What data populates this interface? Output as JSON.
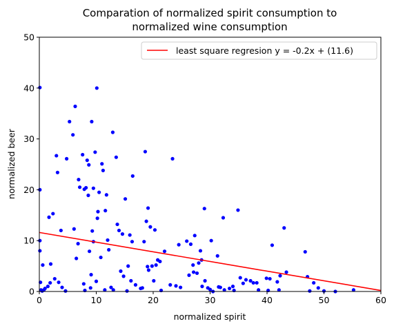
{
  "chart_data": {
    "type": "scatter",
    "title_lines": [
      "Comparation of normalized spirit consumption to",
      "normalized wine consumption"
    ],
    "xlabel": "normalized spirit",
    "ylabel": "normalized beer",
    "xlim": [
      0,
      60
    ],
    "ylim": [
      0,
      50
    ],
    "xticks": [
      0,
      10,
      20,
      30,
      40,
      50,
      60
    ],
    "yticks": [
      0,
      10,
      20,
      30,
      40,
      50
    ],
    "grid": false,
    "legend_position": "top-right",
    "colors": {
      "points": "#0000ff",
      "line": "#ff0000"
    },
    "regression": {
      "label": "least square regresion y = -0.2x + (11.6)",
      "slope": -0.19,
      "intercept": 11.6,
      "x_range": [
        0,
        60
      ]
    },
    "points": [
      [
        0.1,
        40.1
      ],
      [
        0.1,
        20.0
      ],
      [
        0.1,
        10.0
      ],
      [
        0.1,
        8.0
      ],
      [
        0.2,
        1.8
      ],
      [
        0.3,
        0.3
      ],
      [
        0.5,
        0.1
      ],
      [
        0.6,
        5.2
      ],
      [
        0.8,
        0.3
      ],
      [
        1.0,
        0.6
      ],
      [
        1.5,
        1.0
      ],
      [
        1.7,
        14.6
      ],
      [
        1.9,
        1.7
      ],
      [
        2.0,
        5.4
      ],
      [
        2.4,
        15.3
      ],
      [
        2.7,
        2.5
      ],
      [
        3.0,
        26.7
      ],
      [
        3.2,
        23.4
      ],
      [
        3.4,
        1.8
      ],
      [
        3.8,
        12.0
      ],
      [
        4.0,
        0.8
      ],
      [
        4.6,
        0.1
      ],
      [
        4.8,
        26.1
      ],
      [
        5.3,
        33.4
      ],
      [
        5.9,
        30.8
      ],
      [
        6.1,
        12.3
      ],
      [
        6.3,
        36.4
      ],
      [
        6.5,
        6.5
      ],
      [
        6.8,
        9.4
      ],
      [
        6.9,
        22.0
      ],
      [
        7.1,
        20.5
      ],
      [
        7.6,
        26.9
      ],
      [
        7.8,
        1.5
      ],
      [
        7.9,
        20.1
      ],
      [
        8.0,
        0.2
      ],
      [
        8.2,
        20.4
      ],
      [
        8.4,
        25.8
      ],
      [
        8.6,
        18.9
      ],
      [
        8.7,
        24.9
      ],
      [
        8.8,
        7.9
      ],
      [
        9.0,
        0.7
      ],
      [
        9.1,
        3.3
      ],
      [
        9.2,
        33.4
      ],
      [
        9.3,
        11.9
      ],
      [
        9.5,
        20.3
      ],
      [
        9.5,
        9.8
      ],
      [
        9.8,
        27.4
      ],
      [
        10.0,
        2.0
      ],
      [
        10.1,
        40.0
      ],
      [
        10.2,
        14.4
      ],
      [
        10.3,
        15.7
      ],
      [
        10.5,
        19.5
      ],
      [
        10.8,
        6.7
      ],
      [
        11.0,
        25.1
      ],
      [
        11.2,
        23.8
      ],
      [
        11.5,
        0.3
      ],
      [
        11.6,
        15.9
      ],
      [
        11.8,
        19.0
      ],
      [
        12.0,
        10.1
      ],
      [
        12.2,
        8.2
      ],
      [
        12.6,
        0.8
      ],
      [
        12.9,
        31.3
      ],
      [
        13.0,
        0.3
      ],
      [
        13.5,
        26.4
      ],
      [
        13.7,
        13.2
      ],
      [
        14.0,
        12.0
      ],
      [
        14.3,
        4.0
      ],
      [
        14.6,
        11.3
      ],
      [
        14.8,
        3.0
      ],
      [
        15.1,
        18.2
      ],
      [
        15.4,
        0.1
      ],
      [
        15.6,
        5.0
      ],
      [
        15.9,
        11.1
      ],
      [
        16.1,
        2.1
      ],
      [
        16.3,
        9.8
      ],
      [
        16.4,
        22.7
      ],
      [
        16.9,
        1.3
      ],
      [
        17.8,
        0.6
      ],
      [
        18.1,
        0.7
      ],
      [
        18.4,
        9.8
      ],
      [
        18.6,
        27.5
      ],
      [
        18.8,
        13.8
      ],
      [
        19.0,
        4.9
      ],
      [
        19.1,
        16.4
      ],
      [
        19.2,
        4.2
      ],
      [
        19.5,
        12.7
      ],
      [
        19.8,
        5.0
      ],
      [
        20.1,
        2.1
      ],
      [
        20.3,
        12.1
      ],
      [
        20.5,
        5.2
      ],
      [
        20.8,
        6.2
      ],
      [
        21.2,
        5.9
      ],
      [
        21.4,
        0.2
      ],
      [
        22.0,
        7.9
      ],
      [
        23.0,
        1.3
      ],
      [
        23.4,
        26.1
      ],
      [
        24.0,
        1.1
      ],
      [
        24.5,
        9.2
      ],
      [
        24.8,
        0.8
      ],
      [
        25.9,
        9.9
      ],
      [
        26.3,
        3.2
      ],
      [
        26.6,
        9.3
      ],
      [
        27.0,
        5.2
      ],
      [
        27.1,
        3.8
      ],
      [
        27.3,
        11.0
      ],
      [
        27.7,
        3.6
      ],
      [
        28.0,
        5.6
      ],
      [
        28.3,
        8.0
      ],
      [
        28.5,
        6.2
      ],
      [
        28.6,
        1.0
      ],
      [
        29.0,
        16.3
      ],
      [
        29.1,
        2.1
      ],
      [
        29.6,
        0.7
      ],
      [
        30.0,
        0.4
      ],
      [
        30.2,
        10.0
      ],
      [
        30.5,
        0.0
      ],
      [
        31.3,
        7.0
      ],
      [
        31.5,
        0.9
      ],
      [
        31.8,
        0.8
      ],
      [
        32.3,
        14.5
      ],
      [
        32.5,
        0.3
      ],
      [
        33.4,
        0.6
      ],
      [
        34.0,
        1.0
      ],
      [
        34.2,
        0.2
      ],
      [
        34.9,
        16.0
      ],
      [
        35.3,
        2.7
      ],
      [
        35.8,
        1.6
      ],
      [
        36.3,
        2.3
      ],
      [
        37.1,
        2.1
      ],
      [
        37.6,
        1.7
      ],
      [
        38.2,
        1.7
      ],
      [
        38.5,
        0.3
      ],
      [
        39.9,
        2.6
      ],
      [
        40.2,
        0.2
      ],
      [
        40.5,
        2.5
      ],
      [
        40.9,
        9.1
      ],
      [
        41.8,
        1.9
      ],
      [
        42.1,
        0.3
      ],
      [
        42.3,
        3.1
      ],
      [
        43.0,
        12.5
      ],
      [
        43.4,
        3.8
      ],
      [
        46.7,
        7.8
      ],
      [
        47.1,
        2.9
      ],
      [
        47.5,
        0.1
      ],
      [
        48.2,
        1.7
      ],
      [
        49.0,
        0.7
      ],
      [
        50.0,
        0.1
      ],
      [
        52.0,
        0.0
      ],
      [
        55.2,
        0.3
      ]
    ]
  }
}
